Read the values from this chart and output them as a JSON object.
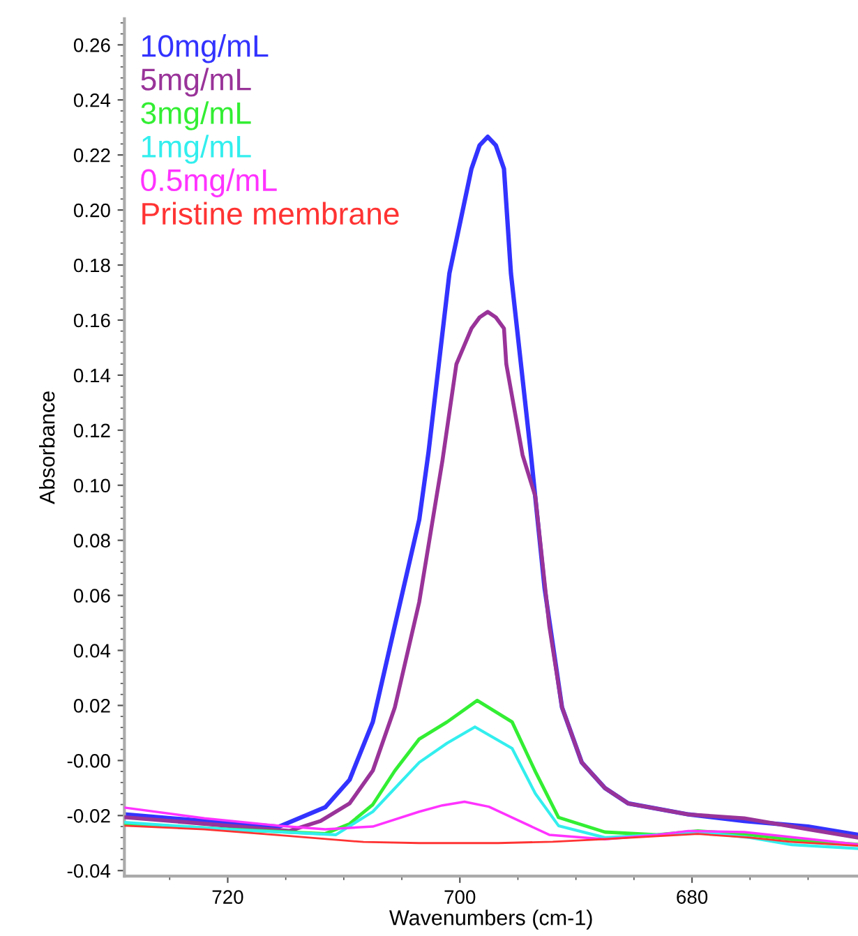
{
  "chart_data": {
    "type": "line",
    "xlabel": "Wavenumbers (cm-1)",
    "ylabel": "Absorbance",
    "xlim": [
      728.9,
      665.7
    ],
    "ylim": [
      -0.042,
      0.2695
    ],
    "xticks": [
      720,
      700,
      680
    ],
    "yticks": [
      {
        "value": -0.04,
        "label": "-0.04"
      },
      {
        "value": -0.02,
        "label": "-0.02"
      },
      {
        "value": 0,
        "label": "-0.00"
      },
      {
        "value": 0.02,
        "label": "0.02"
      },
      {
        "value": 0.04,
        "label": "0.04"
      },
      {
        "value": 0.06,
        "label": "0.06"
      },
      {
        "value": 0.08,
        "label": "0.08"
      },
      {
        "value": 0.1,
        "label": "0.10"
      },
      {
        "value": 0.12,
        "label": "0.12"
      },
      {
        "value": 0.14,
        "label": "0.14"
      },
      {
        "value": 0.16,
        "label": "0.16"
      },
      {
        "value": 0.18,
        "label": "0.18"
      },
      {
        "value": 0.2,
        "label": "0.20"
      },
      {
        "value": 0.22,
        "label": "0.22"
      },
      {
        "value": 0.24,
        "label": "0.24"
      },
      {
        "value": 0.26,
        "label": "0.26"
      }
    ],
    "grid": false,
    "legend": "top left",
    "marker": "none",
    "line_style": "solid",
    "series": [
      {
        "name": "10mg/mL",
        "color": "#3333ff",
        "x": [
          728.9,
          722,
          715.6,
          711.6,
          709.5,
          707.5,
          705.6,
          703.5,
          702.7,
          700.9,
          699,
          698.3,
          697.6,
          696.9,
          696.2,
          695.6,
          693.9,
          692.7,
          691.2,
          689.5,
          687.5,
          685.5,
          680.3,
          675.5,
          670,
          665.7
        ],
        "values": [
          -0.0196,
          -0.022,
          -0.0241,
          -0.017,
          -0.007,
          0.014,
          0.049,
          0.0875,
          0.112,
          0.177,
          0.215,
          0.2235,
          0.2266,
          0.2235,
          0.215,
          0.177,
          0.112,
          0.0626,
          0.0193,
          -0.0007,
          -0.01,
          -0.0156,
          -0.0196,
          -0.022,
          -0.024,
          -0.027
        ]
      },
      {
        "name": "5mg/mL",
        "color": "#993399",
        "x": [
          728.9,
          722,
          714.7,
          712,
          709.5,
          707.5,
          705.6,
          703.5,
          701.5,
          700.3,
          699,
          698.3,
          697.6,
          696.9,
          696.2,
          696.0,
          694.6,
          693.5,
          692.3,
          691.2,
          689.5,
          687.5,
          685.5,
          680.3,
          675.5,
          670,
          665.7
        ],
        "values": [
          -0.0206,
          -0.023,
          -0.0256,
          -0.022,
          -0.0156,
          -0.0037,
          0.0193,
          0.0576,
          0.109,
          0.144,
          0.157,
          0.161,
          0.163,
          0.161,
          0.157,
          0.144,
          0.111,
          0.096,
          0.049,
          0.0193,
          -0.0007,
          -0.01,
          -0.0156,
          -0.0196,
          -0.021,
          -0.025,
          -0.028
        ]
      },
      {
        "name": "3mg/mL",
        "color": "#33ee33",
        "x": [
          728.9,
          720,
          711.6,
          709.5,
          707.5,
          705.6,
          703.5,
          701.1,
          698.5,
          695.5,
          693.5,
          691.5,
          687.5,
          683,
          679.5,
          675,
          671.4,
          665.7
        ],
        "values": [
          -0.0229,
          -0.025,
          -0.0266,
          -0.023,
          -0.016,
          -0.0037,
          0.0078,
          0.014,
          0.0218,
          0.014,
          -0.004,
          -0.0207,
          -0.026,
          -0.027,
          -0.0256,
          -0.027,
          -0.0287,
          -0.0305
        ]
      },
      {
        "name": "1mg/mL",
        "color": "#33eeee",
        "x": [
          728.9,
          720,
          710.7,
          707.5,
          703.5,
          701.1,
          698.7,
          695.5,
          693.5,
          691.5,
          687.5,
          683,
          679.5,
          675,
          671.4,
          665.7
        ],
        "values": [
          -0.0225,
          -0.025,
          -0.027,
          -0.0186,
          -0.0007,
          0.0063,
          0.0122,
          0.0044,
          -0.012,
          -0.0237,
          -0.028,
          -0.027,
          -0.026,
          -0.028,
          -0.0306,
          -0.032
        ]
      },
      {
        "name": "0.5mg/mL",
        "color": "#ff33ff",
        "x": [
          728.9,
          722,
          715.6,
          711.6,
          707.5,
          703.5,
          701.5,
          699.6,
          697.5,
          695.5,
          692.3,
          687.5,
          683,
          680.3,
          675.5,
          670,
          665.7
        ],
        "values": [
          -0.0171,
          -0.021,
          -0.0237,
          -0.025,
          -0.024,
          -0.0186,
          -0.0163,
          -0.015,
          -0.0168,
          -0.0207,
          -0.027,
          -0.0286,
          -0.027,
          -0.0256,
          -0.026,
          -0.0285,
          -0.0305
        ]
      },
      {
        "name": "Pristine membrane",
        "color": "#ff3333",
        "x": [
          728.9,
          722,
          715.6,
          708.3,
          703.5,
          696.7,
          692,
          687.5,
          683,
          679.5,
          675,
          671.4,
          665.7
        ],
        "values": [
          -0.0237,
          -0.025,
          -0.0271,
          -0.0296,
          -0.03,
          -0.03,
          -0.0295,
          -0.0286,
          -0.0275,
          -0.0267,
          -0.028,
          -0.0296,
          -0.031
        ]
      }
    ]
  }
}
